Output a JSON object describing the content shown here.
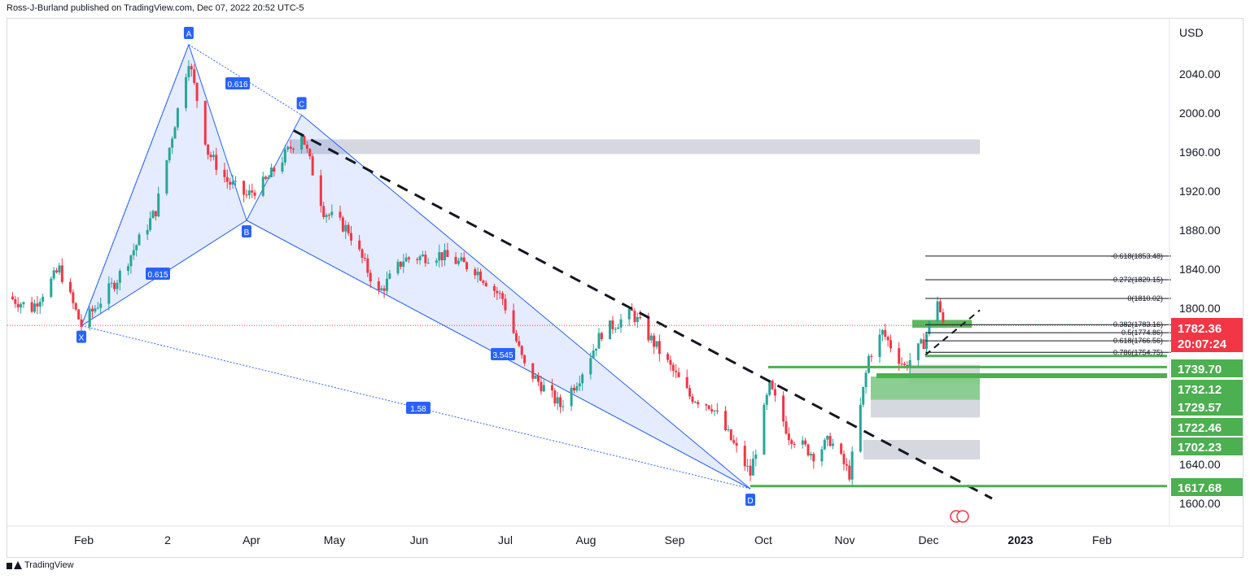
{
  "header": {
    "text": "Ross-J-Burland published on TradingView.com, Dec 07, 2022 20:52 UTC-5"
  },
  "footer": {
    "brand": "TradingView"
  },
  "chart_data": {
    "type": "candlestick",
    "currency": "USD",
    "y_range": [
      1580,
      2085
    ],
    "y_ticks": [
      "2040.00",
      "2000.00",
      "1960.00",
      "1920.00",
      "1880.00",
      "1840.00",
      "1800.00",
      "1640.00",
      "1600.00"
    ],
    "x_ticks": [
      "Feb",
      "2",
      "Apr",
      "May",
      "Jun",
      "Jul",
      "Aug",
      "Sep",
      "Oct",
      "Nov",
      "Dec",
      "2023",
      "Feb"
    ],
    "current_price": {
      "label": "1782.36",
      "countdown": "20:07:24",
      "value": 1782.36,
      "color": "#f23645"
    },
    "price_labels": [
      {
        "label": "1739.70",
        "value": 1739.7
      },
      {
        "label": "1732.12",
        "value": 1732.12
      },
      {
        "label": "1729.57",
        "value": 1729.57
      },
      {
        "label": "1722.46",
        "value": 1722.46
      },
      {
        "label": "1702.23",
        "value": 1702.23
      },
      {
        "label": "1617.68",
        "value": 1617.68
      }
    ],
    "pattern_points": [
      {
        "label": "X",
        "date": "2022-01-28",
        "price": 1782
      },
      {
        "label": "A",
        "date": "2022-03-08",
        "price": 2070
      },
      {
        "label": "B",
        "date": "2022-03-29",
        "price": 1890
      },
      {
        "label": "C",
        "date": "2022-04-18",
        "price": 1998
      },
      {
        "label": "D",
        "date": "2022-09-28",
        "price": 1615
      }
    ],
    "pattern_ratios": [
      "0.616",
      "0.615",
      "3.545",
      "1.58"
    ],
    "fib_levels": [
      {
        "label": "-0.618(1853.48)",
        "value": 1853.48
      },
      {
        "label": "-0.272(1829.15)",
        "value": 1829.15
      },
      {
        "label": "0(1810.02)",
        "value": 1810.02
      },
      {
        "label": "0.382(1783.16)",
        "value": 1783.16
      },
      {
        "label": "0.5(1774.86)",
        "value": 1774.86
      },
      {
        "label": "0.618(1766.56)",
        "value": 1766.56
      },
      {
        "label": "0.786(1754.75)",
        "value": 1754.75
      }
    ],
    "zones": [
      {
        "kind": "resistance",
        "from": 1958,
        "to": 1973,
        "color": "#d1d4dc"
      },
      {
        "kind": "support",
        "from": 1722,
        "to": 1742,
        "color": "#d1d4dc"
      },
      {
        "kind": "support",
        "from": 1730,
        "to": 1706,
        "color": "#7fc985"
      },
      {
        "kind": "support",
        "from": 1706,
        "to": 1688,
        "color": "#d1d4dc"
      },
      {
        "kind": "support",
        "from": 1665,
        "to": 1645,
        "color": "#d1d4dc"
      },
      {
        "kind": "fib-zone",
        "from": 1788,
        "to": 1780,
        "color": "#4caf50"
      }
    ],
    "colors": {
      "up": "#26a69a",
      "down": "#f23645",
      "pattern": "#2962ff",
      "level": "#4caf50"
    }
  }
}
